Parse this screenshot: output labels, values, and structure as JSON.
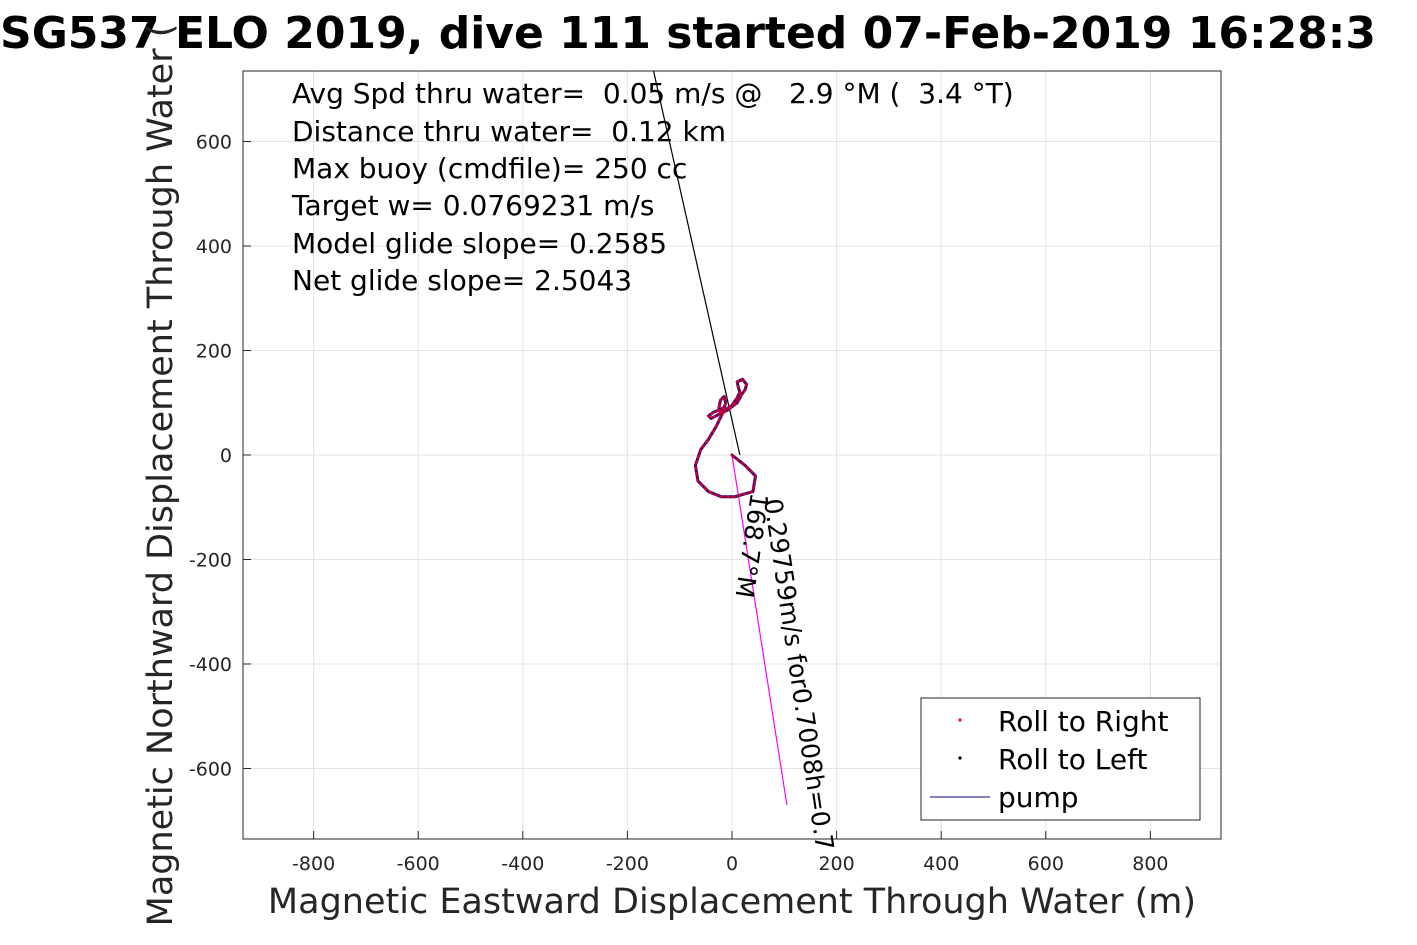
{
  "chart_data": {
    "type": "scatter",
    "title": "SG537 ELO 2019, dive 111 started 07-Feb-2019 16:28:3",
    "xlabel": "Magnetic Eastward Displacement Through Water (m)",
    "ylabel": "Magnetic Northward Displacement Through Water (",
    "xlim": [
      -935,
      935
    ],
    "ylim": [
      -735,
      735
    ],
    "x_ticks": [
      -800,
      -600,
      -400,
      -200,
      0,
      200,
      400,
      600,
      800
    ],
    "y_ticks": [
      600,
      400,
      200,
      0,
      -200,
      -400,
      -600
    ],
    "x_tick_labels": [
      "-800",
      "-600",
      "-400",
      "-200",
      "0",
      "200",
      "400",
      "600",
      "800"
    ],
    "y_tick_labels": [
      "600",
      "400",
      "200",
      "0",
      "-200",
      "-400",
      "-600"
    ],
    "grid": true,
    "legend_position": "bottom-right",
    "legend": [
      "Roll to Right",
      "Roll to Left",
      "pump"
    ],
    "colors": {
      "right": "#ff0000",
      "left": "#000080",
      "pump": "#000080",
      "line": "#000000",
      "current": "#ff00ff"
    },
    "annotations": [
      "Avg Spd thru water=  0.05 m/s @   2.9 °M (  3.4 °T)",
      "Distance thru water=  0.12 km",
      "Max buoy (cmdfile)= 250 cc",
      "Target w= 0.0769231 m/s",
      "Model glide slope= 0.2585",
      "Net glide slope= 2.5043"
    ],
    "current_label": "0.29759m/s for0.7008h=0.7",
    "heading_label": "168.7°M",
    "heading_line": {
      "x": [
        -150,
        15
      ],
      "y": [
        735,
        0
      ]
    },
    "current_line": {
      "x": [
        0,
        105
      ],
      "y": [
        0,
        -670
      ]
    },
    "track": {
      "x": [
        0,
        25,
        45,
        40,
        5,
        -20,
        -45,
        -65,
        -70,
        -60,
        -45,
        -30,
        -18,
        -12,
        -15,
        -22,
        -25,
        -20,
        -10,
        10,
        18,
        25,
        28,
        20,
        10,
        12,
        15,
        10,
        0,
        -15,
        -30,
        -40,
        -45,
        -35,
        -20,
        -15
      ],
      "y": [
        0,
        -20,
        -40,
        -70,
        -80,
        -80,
        -70,
        -50,
        -20,
        10,
        30,
        55,
        80,
        100,
        112,
        105,
        90,
        80,
        85,
        100,
        115,
        125,
        135,
        145,
        140,
        130,
        120,
        110,
        95,
        85,
        75,
        70,
        75,
        82,
        88,
        92
      ]
    }
  }
}
